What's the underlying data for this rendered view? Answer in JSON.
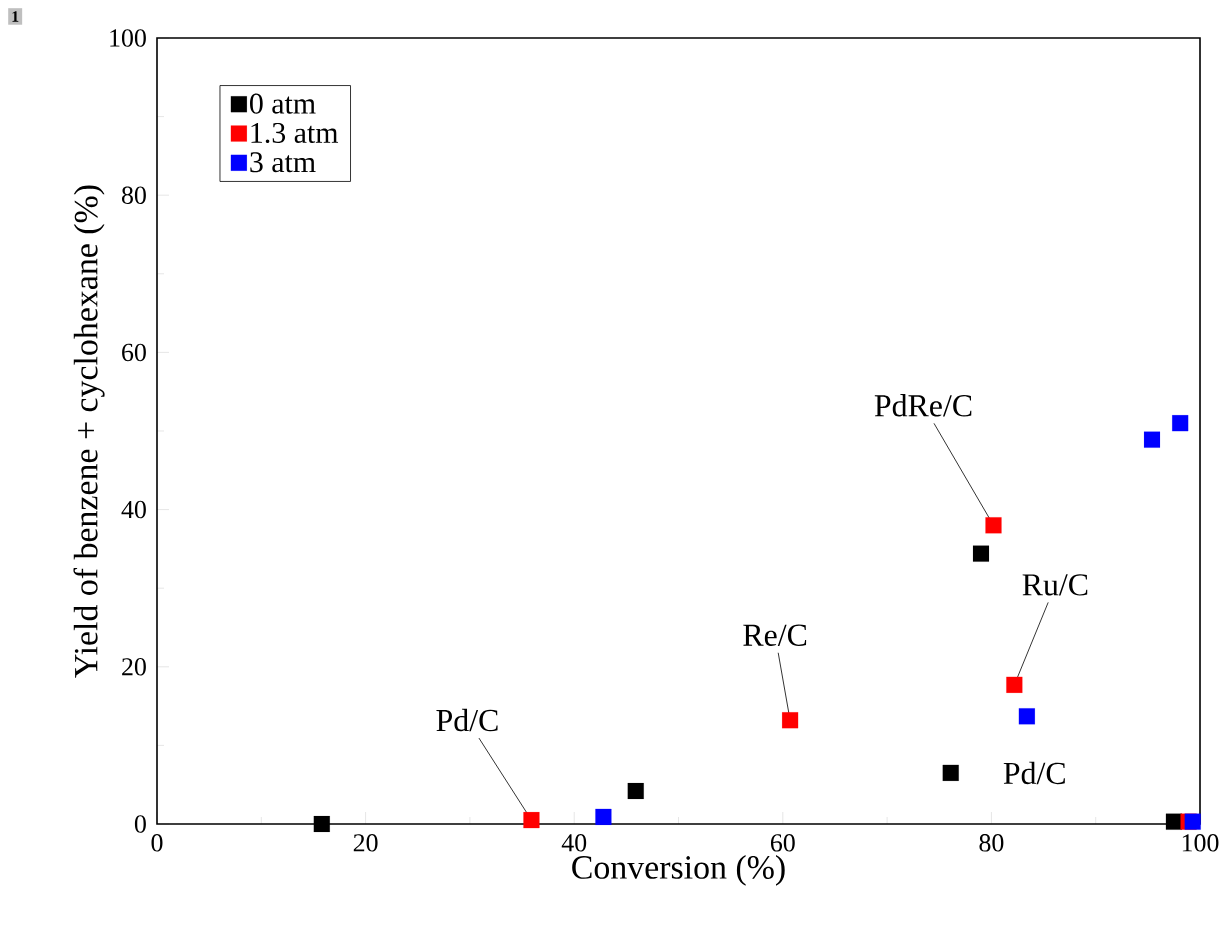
{
  "chart_data": {
    "type": "scatter",
    "xlabel": "Conversion (%)",
    "ylabel": "Yield of benzene + cyclohexane (%)",
    "xlim": [
      0,
      100
    ],
    "ylim": [
      0,
      100
    ],
    "xticks": [
      0,
      20,
      40,
      60,
      80,
      100
    ],
    "yticks": [
      0,
      20,
      40,
      60,
      80,
      100
    ],
    "grid": false,
    "legend": "top left",
    "marker": "square",
    "series": [
      {
        "name": "0 atm",
        "color": "#000000",
        "x": [
          15.8,
          45.9,
          76.1,
          79.0,
          97.5
        ],
        "values": [
          0,
          4.2,
          6.5,
          34.4,
          0.3
        ]
      },
      {
        "name": "1.3 atm",
        "color": "#ff0000",
        "x": [
          35.9,
          60.7,
          82.2,
          80.2,
          98.9
        ],
        "values": [
          0.5,
          13.2,
          17.7,
          38.0,
          0.3
        ]
      },
      {
        "name": "3 atm",
        "color": "#0000ff",
        "x": [
          42.8,
          83.4,
          95.4,
          98.1,
          99.3
        ],
        "values": [
          0.9,
          13.7,
          48.9,
          51.0,
          0.3
        ]
      }
    ],
    "annotations": [
      "1",
      {
        "text": "Pd/C",
        "x": 35.9,
        "y": 0.5
      },
      {
        "text": "Re/C",
        "x": 60.7,
        "y": 13.2
      },
      {
        "text": "PdRe/C",
        "x": 80.2,
        "y": 38.0
      },
      {
        "text": "Ru/C",
        "x": 82.2,
        "y": 17.7
      },
      {
        "text": "Pd/C",
        "x": 76.1,
        "y": 6.5
      }
    ]
  }
}
